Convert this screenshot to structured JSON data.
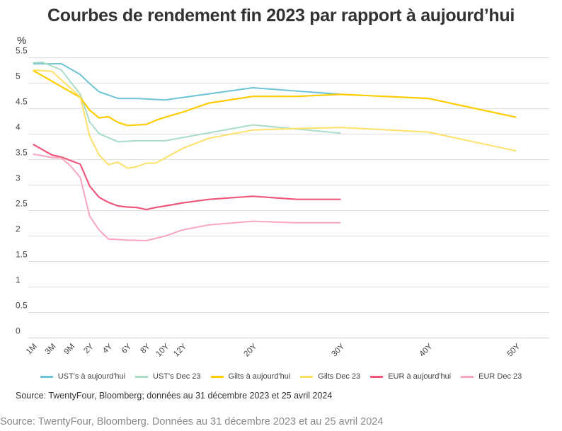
{
  "chart_data": {
    "type": "line",
    "title": "Courbes de rendement fin 2023 par rapport à aujourd’hui",
    "ylabel": "%",
    "ylim": [
      0,
      5.5
    ],
    "yticks": [
      "0",
      "0.5",
      "1",
      "1.5",
      "2",
      "2.5",
      "3",
      "3.5",
      "4",
      "4.5",
      "5",
      "5.5"
    ],
    "xtick_labels": [
      "1M",
      "3M",
      "9M",
      "2Y",
      "4Y",
      "6Y",
      "8Y",
      "10Y",
      "12Y",
      "20Y",
      "30Y",
      "40Y",
      "50Y"
    ],
    "grid": true,
    "legend_position": "bottom",
    "series": [
      {
        "name": "UST's à aujourd'hui",
        "color": "#6cc3d5",
        "width": 2,
        "points": [
          [
            "1M",
            5.38
          ],
          [
            "3M",
            5.38
          ],
          [
            "6M",
            5.38
          ],
          [
            "1Y",
            5.17
          ],
          [
            "2Y",
            4.99
          ],
          [
            "3Y",
            4.83
          ],
          [
            "5Y",
            4.7
          ],
          [
            "7Y",
            4.7
          ],
          [
            "10Y",
            4.67
          ],
          [
            "12Y",
            4.72
          ],
          [
            "20Y",
            4.91
          ],
          [
            "30Y",
            4.78
          ]
        ]
      },
      {
        "name": "UST's Dec 23",
        "color": "#a8dcc4",
        "width": 2,
        "points": [
          [
            "1M",
            5.4
          ],
          [
            "2M",
            5.41
          ],
          [
            "6M",
            5.26
          ],
          [
            "1Y",
            4.78
          ],
          [
            "2Y",
            4.24
          ],
          [
            "3Y",
            4.01
          ],
          [
            "5Y",
            3.85
          ],
          [
            "7Y",
            3.87
          ],
          [
            "10Y",
            3.87
          ],
          [
            "20Y",
            4.18
          ],
          [
            "30Y",
            4.02
          ]
        ]
      },
      {
        "name": "Gilts à aujourd'hui",
        "color": "#ffcc00",
        "width": 2.2,
        "points": [
          [
            "1M",
            5.25
          ],
          [
            "1Y",
            4.72
          ],
          [
            "2Y",
            4.47
          ],
          [
            "3Y",
            4.32
          ],
          [
            "4Y",
            4.34
          ],
          [
            "5Y",
            4.23
          ],
          [
            "6Y",
            4.17
          ],
          [
            "8Y",
            4.19
          ],
          [
            "9Y",
            4.27
          ],
          [
            "10Y",
            4.33
          ],
          [
            "12Y",
            4.43
          ],
          [
            "15Y",
            4.61
          ],
          [
            "20Y",
            4.74
          ],
          [
            "25Y",
            4.74
          ],
          [
            "30Y",
            4.78
          ],
          [
            "40Y",
            4.7
          ],
          [
            "50Y",
            4.33
          ]
        ]
      },
      {
        "name": "Gilts Dec 23",
        "color": "#ffe066",
        "width": 2,
        "points": [
          [
            "1M",
            5.26
          ],
          [
            "3M",
            5.23
          ],
          [
            "1Y",
            4.73
          ],
          [
            "2Y",
            3.96
          ],
          [
            "3Y",
            3.59
          ],
          [
            "4Y",
            3.4
          ],
          [
            "5Y",
            3.45
          ],
          [
            "6Y",
            3.33
          ],
          [
            "7Y",
            3.36
          ],
          [
            "8Y",
            3.43
          ],
          [
            "9Y",
            3.43
          ],
          [
            "10Y",
            3.53
          ],
          [
            "12Y",
            3.72
          ],
          [
            "15Y",
            3.92
          ],
          [
            "20Y",
            4.08
          ],
          [
            "25Y",
            4.11
          ],
          [
            "30Y",
            4.13
          ],
          [
            "40Y",
            4.04
          ],
          [
            "50Y",
            3.67
          ]
        ]
      },
      {
        "name": "EUR à aujourd'hui",
        "color": "#f0557a",
        "width": 2.2,
        "points": [
          [
            "1M",
            3.8
          ],
          [
            "3M",
            3.59
          ],
          [
            "6M",
            3.55
          ],
          [
            "1Y",
            3.41
          ],
          [
            "2Y",
            2.98
          ],
          [
            "3Y",
            2.76
          ],
          [
            "4Y",
            2.66
          ],
          [
            "5Y",
            2.59
          ],
          [
            "6Y",
            2.57
          ],
          [
            "7Y",
            2.56
          ],
          [
            "8Y",
            2.52
          ],
          [
            "9Y",
            2.56
          ],
          [
            "10Y",
            2.59
          ],
          [
            "12Y",
            2.65
          ],
          [
            "15Y",
            2.72
          ],
          [
            "20Y",
            2.78
          ],
          [
            "25Y",
            2.72
          ],
          [
            "30Y",
            2.72
          ]
        ]
      },
      {
        "name": "EUR Dec 23",
        "color": "#f7a6bd",
        "width": 2,
        "points": [
          [
            "1M",
            3.61
          ],
          [
            "3M",
            3.54
          ],
          [
            "6M",
            3.53
          ],
          [
            "9M",
            3.37
          ],
          [
            "1Y",
            3.15
          ],
          [
            "2Y",
            2.39
          ],
          [
            "3Y",
            2.12
          ],
          [
            "4Y",
            1.94
          ],
          [
            "6Y",
            1.92
          ],
          [
            "8Y",
            1.91
          ],
          [
            "10Y",
            2.0
          ],
          [
            "12Y",
            2.12
          ],
          [
            "15Y",
            2.22
          ],
          [
            "20Y",
            2.29
          ],
          [
            "25Y",
            2.26
          ],
          [
            "30Y",
            2.26
          ]
        ]
      }
    ]
  },
  "footer": {
    "source_chart": "Source: TwentyFour, Bloomberg; données au 31 décembre 2023 et 25 avril 2024",
    "source_page": "Source: TwentyFour, Bloomberg. Données au 31 décembre 2023 et au 25 avril 2024"
  }
}
